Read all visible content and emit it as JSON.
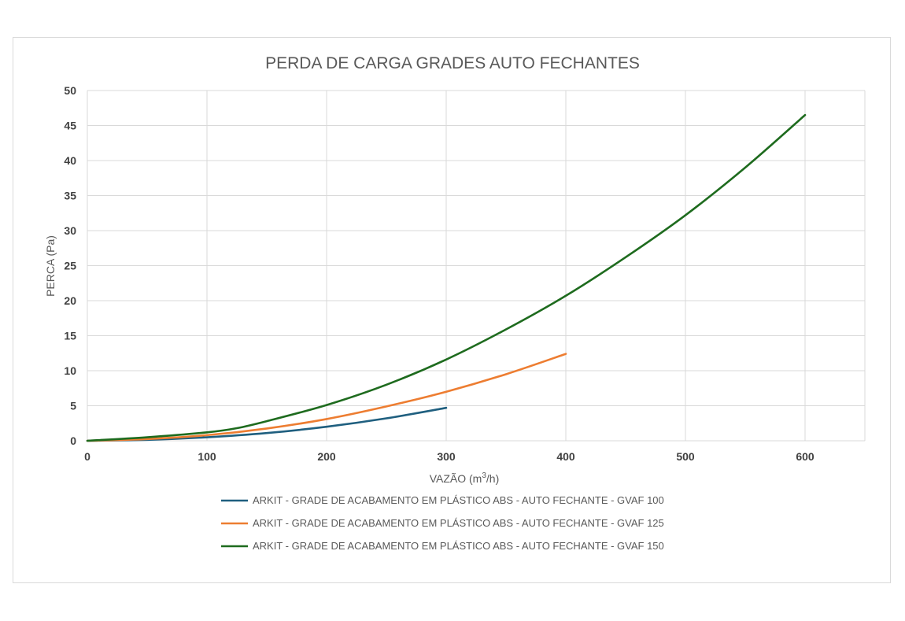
{
  "chart_data": {
    "type": "line",
    "title": "PERDA DE CARGA GRADES AUTO FECHANTES",
    "xlabel_main": "VAZÃO (m",
    "xlabel_sup": "3",
    "xlabel_end": "/h)",
    "ylabel": "PERCA (Pa)",
    "xlim": [
      0,
      650
    ],
    "ylim": [
      0,
      50
    ],
    "xticks": [
      0,
      100,
      200,
      300,
      400,
      500,
      600
    ],
    "yticks": [
      0,
      5,
      10,
      15,
      20,
      25,
      30,
      35,
      40,
      45,
      50
    ],
    "grid": true,
    "legend_position": "bottom",
    "series": [
      {
        "name": "ARKIT - GRADE DE ACABAMENTO EM PLÁSTICO ABS - AUTO FECHANTE - GVAF 100",
        "color": "#1f5f7f",
        "x": [
          0,
          50,
          100,
          150,
          200,
          250,
          300
        ],
        "y": [
          0,
          0.13,
          0.5,
          1.1,
          2.0,
          3.2,
          4.7
        ]
      },
      {
        "name": "ARKIT - GRADE DE ACABAMENTO EM PLÁSTICO ABS - AUTO FECHANTE - GVAF 125",
        "color": "#ed7d31",
        "x": [
          0,
          50,
          100,
          150,
          200,
          250,
          300,
          350,
          400
        ],
        "y": [
          0,
          0.25,
          0.8,
          1.75,
          3.1,
          4.9,
          7.0,
          9.5,
          12.4
        ]
      },
      {
        "name": "ARKIT - GRADE DE ACABAMENTO EM PLÁSTICO ABS - AUTO FECHANTE - GVAF 150",
        "color": "#1e6b1e",
        "x": [
          0,
          50,
          100,
          125,
          150,
          200,
          250,
          300,
          350,
          400,
          450,
          500,
          550,
          600
        ],
        "y": [
          0,
          0.5,
          1.2,
          1.8,
          2.8,
          5.1,
          8.0,
          11.6,
          15.9,
          20.7,
          26.2,
          32.2,
          39.0,
          46.5
        ]
      }
    ]
  }
}
